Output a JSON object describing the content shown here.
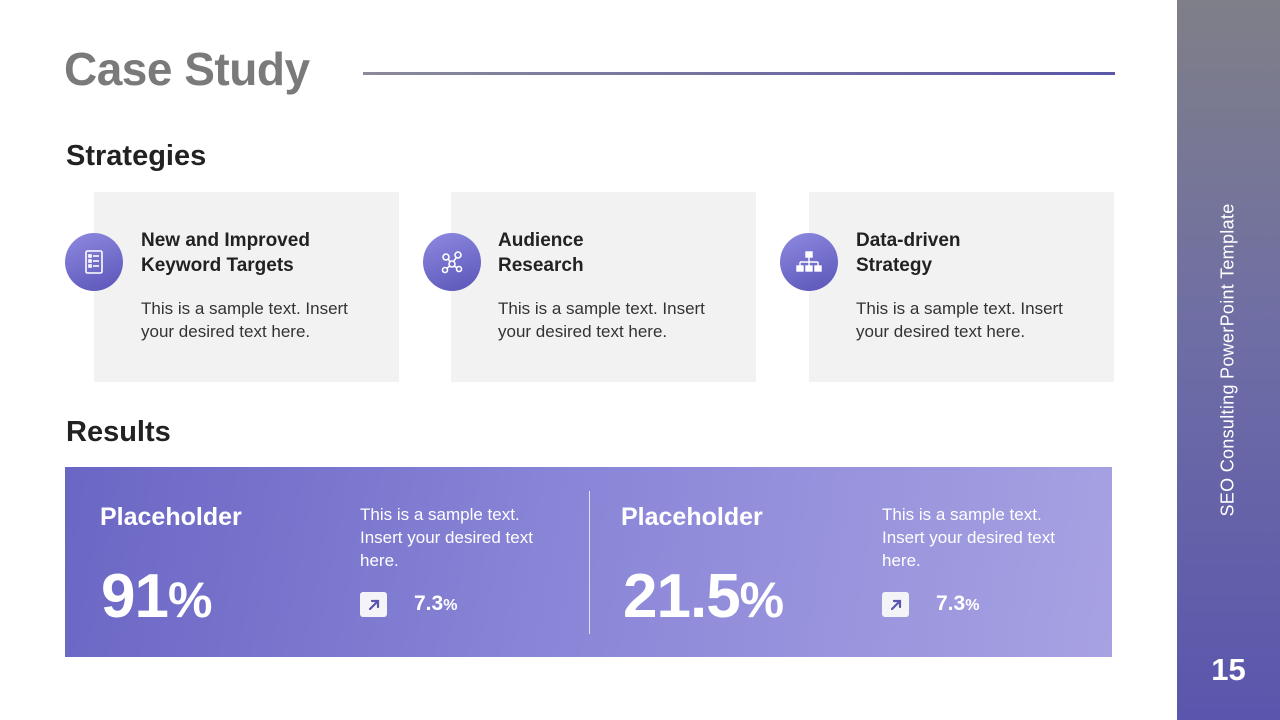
{
  "slide": {
    "title": "Case Study",
    "side_label": "SEO Consulting PowerPoint Template",
    "page_number": "15"
  },
  "strategies": {
    "heading": "Strategies",
    "cards": [
      {
        "title_line1": "New and Improved",
        "title_line2": "Keyword Targets",
        "text_line1": "This is a sample text. Insert",
        "text_line2": "your desired text here.",
        "icon": "checklist-icon"
      },
      {
        "title_line1": "Audience",
        "title_line2": "Research",
        "text_line1": "This is a sample text. Insert",
        "text_line2": "your desired text here.",
        "icon": "network-icon"
      },
      {
        "title_line1": "Data-driven",
        "title_line2": "Strategy",
        "text_line1": "This is a sample text. Insert",
        "text_line2": "your desired text here.",
        "icon": "hierarchy-icon"
      }
    ]
  },
  "results": {
    "heading": "Results",
    "items": [
      {
        "label": "Placeholder",
        "value": "91",
        "value_unit": "%",
        "text_line1": "This is a sample text.",
        "text_line2": "Insert your desired text",
        "text_line3": "here.",
        "change": "7.3",
        "change_unit": "%"
      },
      {
        "label": "Placeholder",
        "value": "21.5",
        "value_unit": "%",
        "text_line1": "This is a sample text.",
        "text_line2": "Insert your desired text",
        "text_line3": "here.",
        "change": "7.3",
        "change_unit": "%"
      }
    ]
  },
  "colors": {
    "accent": "#6a66c4",
    "card_background": "#f2f2f2",
    "title_gray": "#7a7a7a"
  }
}
